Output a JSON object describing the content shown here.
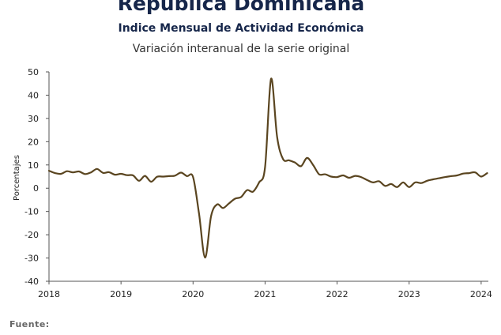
{
  "header": {
    "title": "República Dominicana",
    "subtitle": "Indice Mensual de  Actividad Económica",
    "caption": "Variación interanual de la serie original"
  },
  "footer": {
    "source_label": "Fuente:"
  },
  "chart_data": {
    "type": "line",
    "title": "Indice Mensual de  Actividad Económica",
    "subtitle": "Variación interanual de la serie original",
    "ylabel": "Porcentajes",
    "xlabel": "",
    "ylim": [
      -40,
      50
    ],
    "xlim": [
      2018,
      2024.1
    ],
    "yticks": [
      50,
      40,
      30,
      20,
      10,
      0,
      -10,
      -20,
      -30,
      -40
    ],
    "xticks": [
      2018,
      2019,
      2020,
      2021,
      2022,
      2023,
      2024
    ],
    "negative_tick_color": "#cc0000",
    "line_color": "#5a4520",
    "grid": false,
    "series": [
      {
        "x": [
          2018.0,
          2018.083,
          2018.167,
          2018.25,
          2018.333,
          2018.417,
          2018.5,
          2018.583,
          2018.667,
          2018.75,
          2018.833,
          2018.917,
          2019.0,
          2019.083,
          2019.167,
          2019.25,
          2019.333,
          2019.417,
          2019.5,
          2019.583,
          2019.667,
          2019.75,
          2019.833,
          2019.917,
          2020.0,
          2020.083,
          2020.167,
          2020.25,
          2020.333,
          2020.417,
          2020.5,
          2020.583,
          2020.667,
          2020.75,
          2020.833,
          2020.917,
          2021.0,
          2021.083,
          2021.167,
          2021.25,
          2021.333,
          2021.417,
          2021.5,
          2021.583,
          2021.667,
          2021.75,
          2021.833,
          2021.917,
          2022.0,
          2022.083,
          2022.167,
          2022.25,
          2022.333,
          2022.417,
          2022.5,
          2022.583,
          2022.667,
          2022.75,
          2022.833,
          2022.917,
          2023.0,
          2023.083,
          2023.167,
          2023.25,
          2023.333,
          2023.417,
          2023.5,
          2023.583,
          2023.667,
          2023.75,
          2023.833,
          2023.917,
          2024.0,
          2024.083
        ],
        "y": [
          7.5,
          6.5,
          6.2,
          7.3,
          6.8,
          7.2,
          6.1,
          6.8,
          8.3,
          6.6,
          6.9,
          5.8,
          6.2,
          5.6,
          5.5,
          3.2,
          5.3,
          2.8,
          4.9,
          5.0,
          5.2,
          5.4,
          6.7,
          5.2,
          4.8,
          -11.0,
          -29.8,
          -12.0,
          -7.0,
          -8.5,
          -6.5,
          -4.5,
          -3.8,
          -0.8,
          -1.5,
          2.5,
          9.0,
          47.0,
          22.0,
          12.5,
          12.0,
          11.0,
          9.5,
          13.0,
          10.0,
          6.0,
          6.0,
          5.0,
          4.8,
          5.5,
          4.5,
          5.3,
          4.8,
          3.5,
          2.5,
          3.0,
          1.0,
          1.8,
          0.5,
          2.5,
          0.5,
          2.5,
          2.2,
          3.2,
          3.8,
          4.3,
          4.8,
          5.2,
          5.5,
          6.3,
          6.5,
          6.8,
          5.0,
          6.5
        ]
      }
    ]
  }
}
